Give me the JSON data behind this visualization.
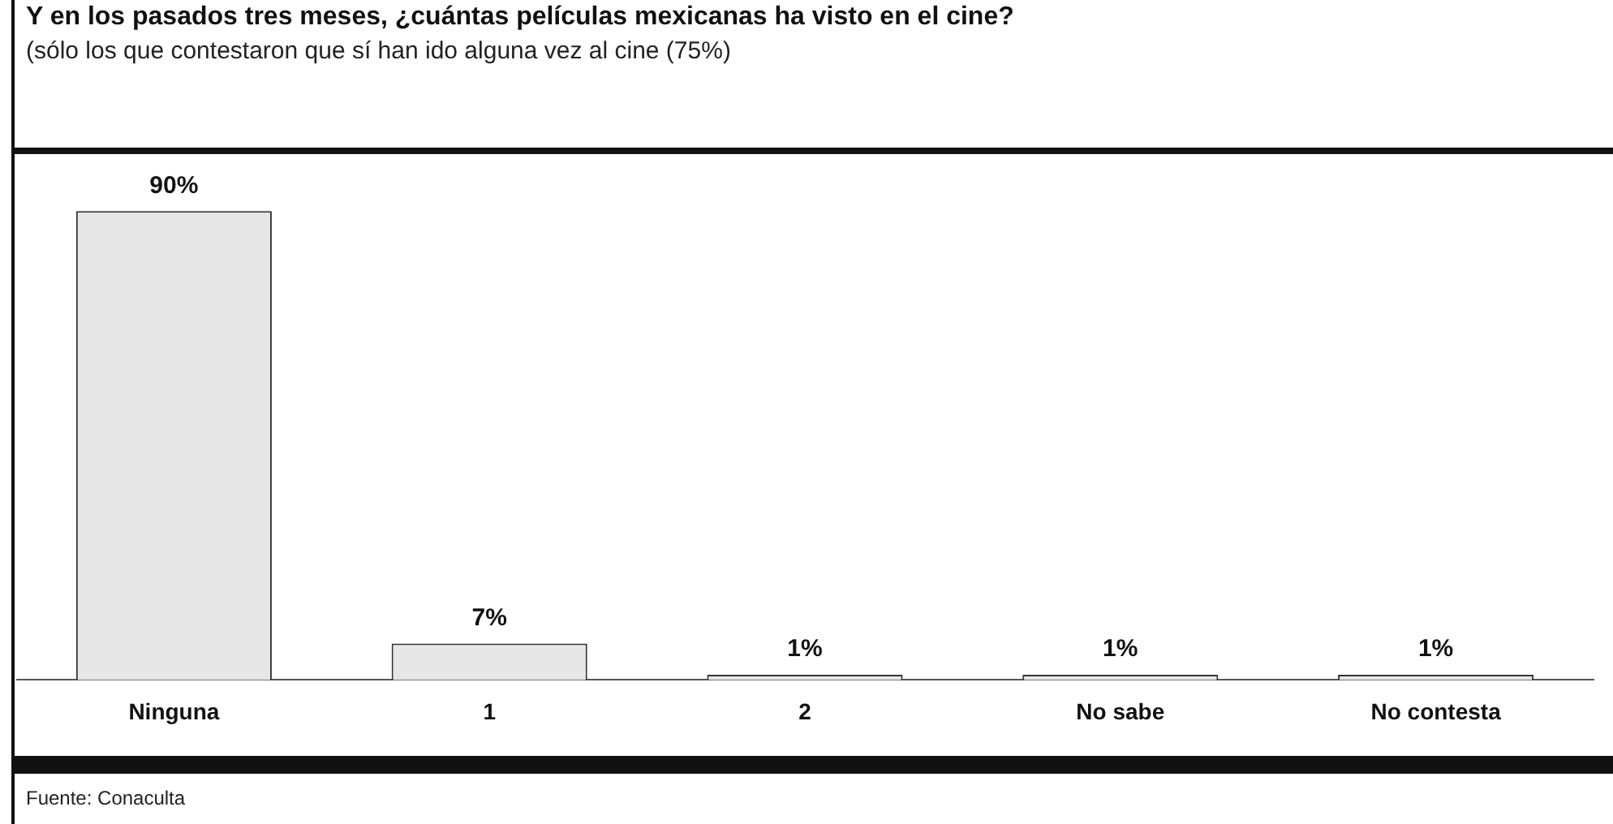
{
  "chart_data": {
    "type": "bar",
    "title": "Y en los pasados tres meses, ¿cuántas películas mexicanas ha visto en el cine?",
    "subtitle": "(sólo los que contestaron que sí han ido alguna vez al cine (75%)",
    "categories": [
      "Ninguna",
      "1",
      "2",
      "No sabe",
      "No contesta"
    ],
    "values": [
      90,
      7,
      1,
      1,
      1
    ],
    "color": "#e6e6e6",
    "value_labels": [
      "90%",
      "7%",
      "1%",
      "1%",
      "1%"
    ],
    "tick_labels": "x",
    "grid": false,
    "legend": false,
    "annotations": [
      "Fuente: Conaculta"
    ]
  }
}
